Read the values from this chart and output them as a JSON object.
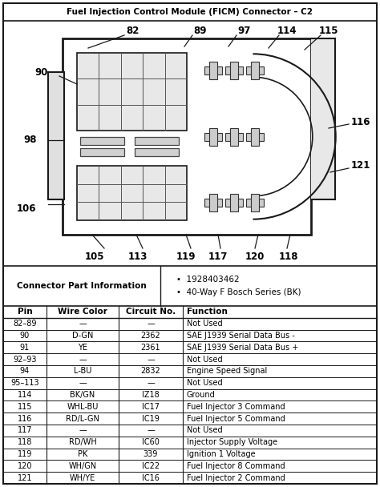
{
  "title": "Fuel Injection Control Module (FICM) Connector – C2",
  "connector_info": {
    "label": "Connector Part Information",
    "bullets": [
      "1928403462",
      "40-Way F Bosch Series (BK)"
    ]
  },
  "table_headers": [
    "Pin",
    "Wire Color",
    "Circuit No.",
    "Function"
  ],
  "table_rows": [
    [
      "82–89",
      "—",
      "—",
      "Not Used"
    ],
    [
      "90",
      "D-GN",
      "2362",
      "SAE J1939 Serial Data Bus -"
    ],
    [
      "91",
      "YE",
      "2361",
      "SAE J1939 Serial Data Bus +"
    ],
    [
      "92–93",
      "—",
      "—",
      "Not Used"
    ],
    [
      "94",
      "L-BU",
      "2832",
      "Engine Speed Signal"
    ],
    [
      "95–113",
      "—",
      "—",
      "Not Used"
    ],
    [
      "114",
      "BK/GN",
      "IZ18",
      "Ground"
    ],
    [
      "115",
      "WHL-BU",
      "IC17",
      "Fuel Injector 3 Command"
    ],
    [
      "116",
      "RD/L-GN",
      "IC19",
      "Fuel Injector 5 Command"
    ],
    [
      "117",
      "—",
      "—",
      "Not Used"
    ],
    [
      "118",
      "RD/WH",
      "IC60",
      "Injector Supply Voltage"
    ],
    [
      "119",
      "PK",
      "339",
      "Ignition 1 Voltage"
    ],
    [
      "120",
      "WH/GN",
      "IC22",
      "Fuel Injector 8 Command"
    ],
    [
      "121",
      "WH/YE",
      "IC16",
      "Fuel Injector 2 Command"
    ]
  ]
}
